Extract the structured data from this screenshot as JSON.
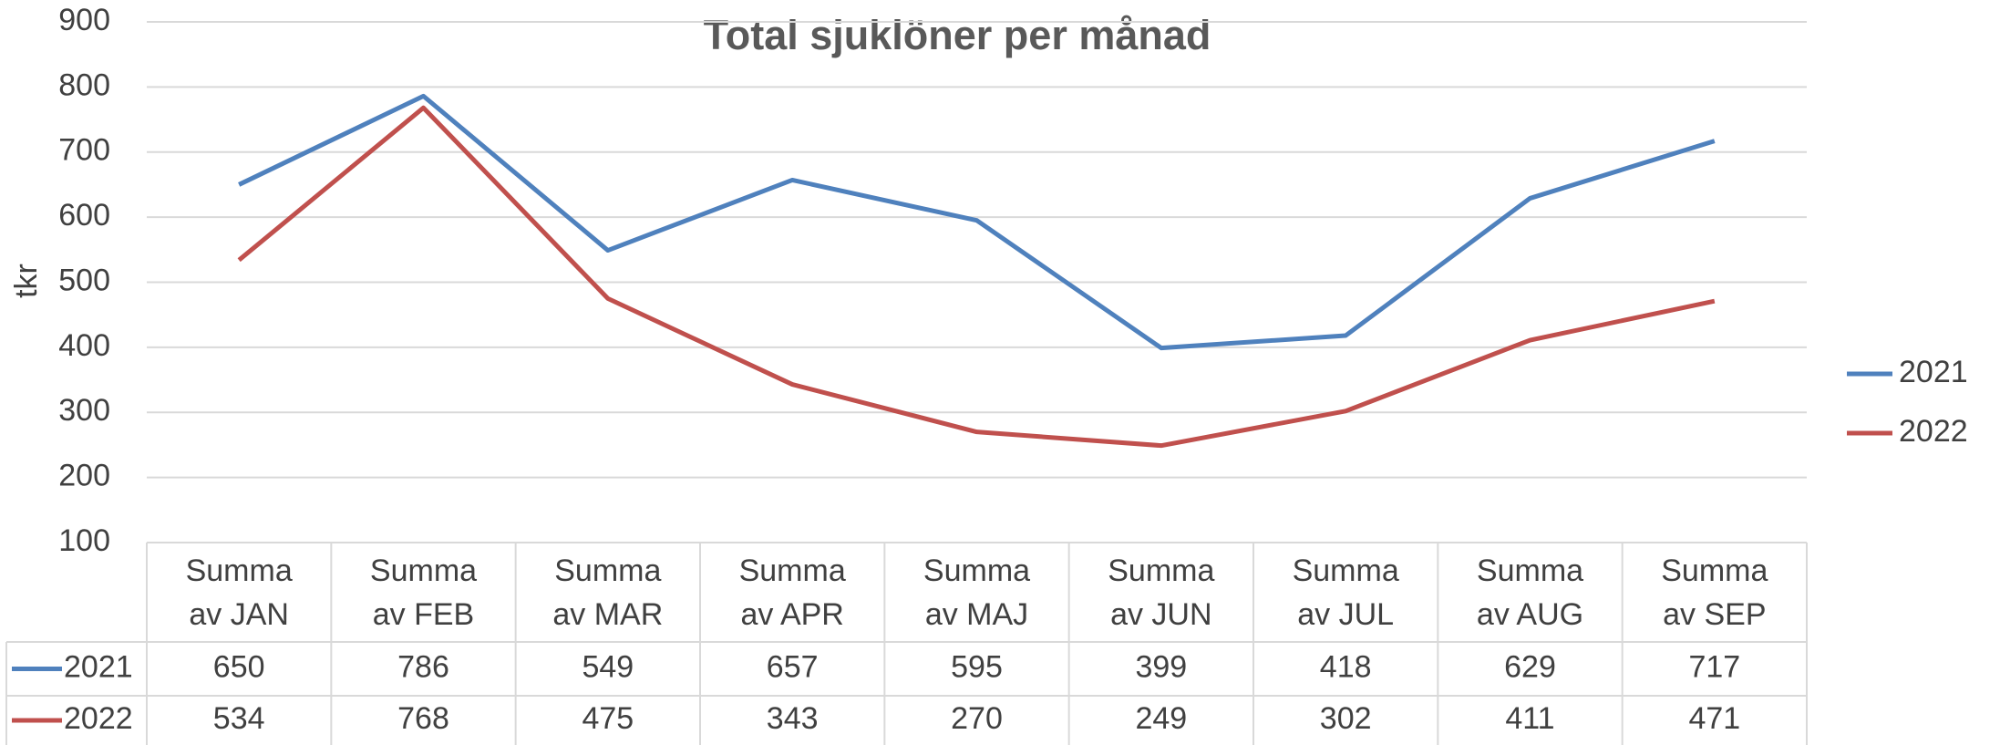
{
  "chart_data": {
    "type": "line",
    "title": "Total sjuklöner per månad",
    "ylabel": "tkr",
    "categories": [
      "Summa av JAN",
      "Summa av FEB",
      "Summa av MAR",
      "Summa av APR",
      "Summa av MAJ",
      "Summa av JUN",
      "Summa av JUL",
      "Summa av AUG",
      "Summa av SEP"
    ],
    "series": [
      {
        "name": "2021",
        "color": "#4f81bd",
        "values": [
          650,
          786,
          549,
          657,
          595,
          399,
          418,
          629,
          717
        ]
      },
      {
        "name": "2022",
        "color": "#c0504d",
        "values": [
          534,
          768,
          475,
          343,
          270,
          249,
          302,
          411,
          471
        ]
      }
    ],
    "ylim": [
      100,
      900
    ],
    "yticks": [
      100,
      200,
      300,
      400,
      500,
      600,
      700,
      800,
      900
    ],
    "grid": true,
    "legend": "right"
  }
}
